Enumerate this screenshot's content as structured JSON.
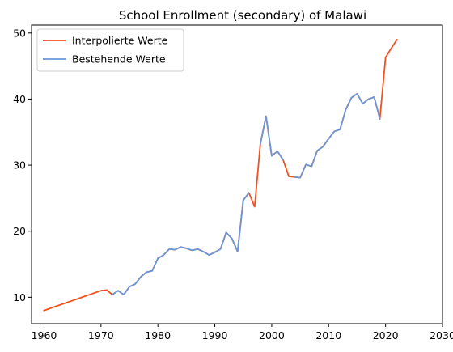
{
  "chart_data": {
    "type": "line",
    "title": "School Enrollment (secondary) of Malawi",
    "xlabel": "",
    "ylabel": "",
    "xlim": [
      1957.8,
      2030
    ],
    "ylim": [
      6.0,
      51.2
    ],
    "xticks": [
      1960,
      1970,
      1980,
      1990,
      2000,
      2010,
      2020,
      2030
    ],
    "yticks": [
      10,
      20,
      30,
      40,
      50
    ],
    "grid": false,
    "legend_position": "top-left",
    "series": [
      {
        "name": "Interpolierte Werte",
        "color": "#f4511e",
        "x": [
          1960,
          1961,
          1962,
          1963,
          1964,
          1965,
          1966,
          1967,
          1968,
          1969,
          1970,
          1971,
          1972,
          1973,
          1974,
          1975,
          1976,
          1977,
          1978,
          1979,
          1980,
          1981,
          1982,
          1983,
          1984,
          1985,
          1986,
          1987,
          1988,
          1989,
          1990,
          1991,
          1992,
          1993,
          1994,
          1995,
          1996,
          1997,
          1998,
          1999,
          2000,
          2001,
          2002,
          2003,
          2004,
          2005,
          2006,
          2007,
          2008,
          2009,
          2010,
          2011,
          2012,
          2013,
          2014,
          2015,
          2016,
          2017,
          2018,
          2019,
          2020,
          2021,
          2022
        ],
        "y": [
          8.0,
          8.3,
          8.6,
          8.9,
          9.2,
          9.5,
          9.8,
          10.1,
          10.4,
          10.7,
          11.0,
          11.1,
          10.4,
          11.0,
          10.4,
          11.6,
          12.0,
          13.1,
          13.8,
          14.0,
          15.9,
          16.4,
          17.3,
          17.2,
          17.6,
          17.4,
          17.1,
          17.3,
          16.9,
          16.4,
          16.8,
          17.3,
          19.8,
          18.9,
          16.9,
          24.7,
          25.8,
          23.7,
          33.2,
          37.4,
          31.4,
          32.1,
          30.8,
          28.3,
          28.2,
          28.1,
          30.1,
          29.8,
          32.2,
          32.8,
          34.0,
          35.1,
          35.4,
          38.4,
          40.2,
          40.8,
          39.3,
          40.0,
          40.3,
          37.0,
          46.3,
          47.7,
          49.0
        ]
      },
      {
        "name": "Bestehende Werte",
        "color": "#6a97d9",
        "x": [
          1972,
          1973,
          1974,
          1975,
          1976,
          1977,
          1978,
          1979,
          1980,
          1981,
          1982,
          1983,
          1984,
          1985,
          1986,
          1987,
          1988,
          1989,
          1990,
          1991,
          1992,
          1993,
          1994,
          1995,
          1996,
          null,
          1998,
          1999,
          2000,
          2001,
          2002,
          null,
          2004,
          2005,
          2006,
          2007,
          2008,
          2009,
          2010,
          2011,
          2012,
          2013,
          2014,
          2015,
          2016,
          2017,
          2018,
          2019
        ],
        "y": [
          10.4,
          11.0,
          10.4,
          11.6,
          12.0,
          13.1,
          13.8,
          14.0,
          15.9,
          16.4,
          17.3,
          17.2,
          17.6,
          17.4,
          17.1,
          17.3,
          16.9,
          16.4,
          16.8,
          17.3,
          19.8,
          18.9,
          16.9,
          24.7,
          25.8,
          null,
          33.2,
          37.4,
          31.4,
          32.1,
          30.8,
          null,
          28.2,
          28.1,
          30.1,
          29.8,
          32.2,
          32.8,
          34.0,
          35.1,
          35.4,
          38.4,
          40.2,
          40.8,
          39.3,
          40.0,
          40.3,
          37.0
        ]
      }
    ]
  }
}
